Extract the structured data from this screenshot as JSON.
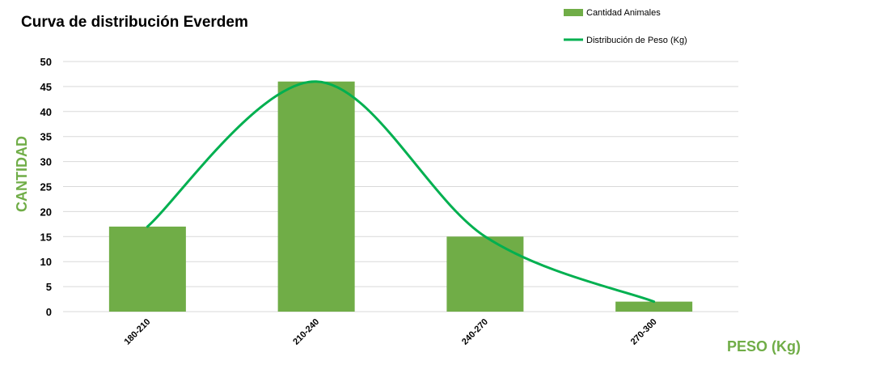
{
  "chart_data": {
    "type": "bar",
    "title": "Curva de distribución Everdem",
    "xlabel": "PESO (Kg)",
    "ylabel": "CANTIDAD",
    "categories": [
      "180-210",
      "210-240",
      "240-270",
      "270-300"
    ],
    "series": [
      {
        "name": "Cantidad Animales",
        "type": "bar",
        "values": [
          17,
          46,
          15,
          2
        ],
        "color": "#70AD47"
      },
      {
        "name": "Distribución de Peso (Kg)",
        "type": "line",
        "smooth": true,
        "values": [
          17,
          46,
          15,
          2
        ],
        "color": "#00B050"
      }
    ],
    "ylim": [
      0,
      50
    ],
    "yticks": [
      0,
      5,
      10,
      15,
      20,
      25,
      30,
      35,
      40,
      45,
      50
    ],
    "grid": true,
    "legend_position": "top-right",
    "axis_title_color": "#70AD47",
    "gridline_color": "#D9D9D9"
  }
}
